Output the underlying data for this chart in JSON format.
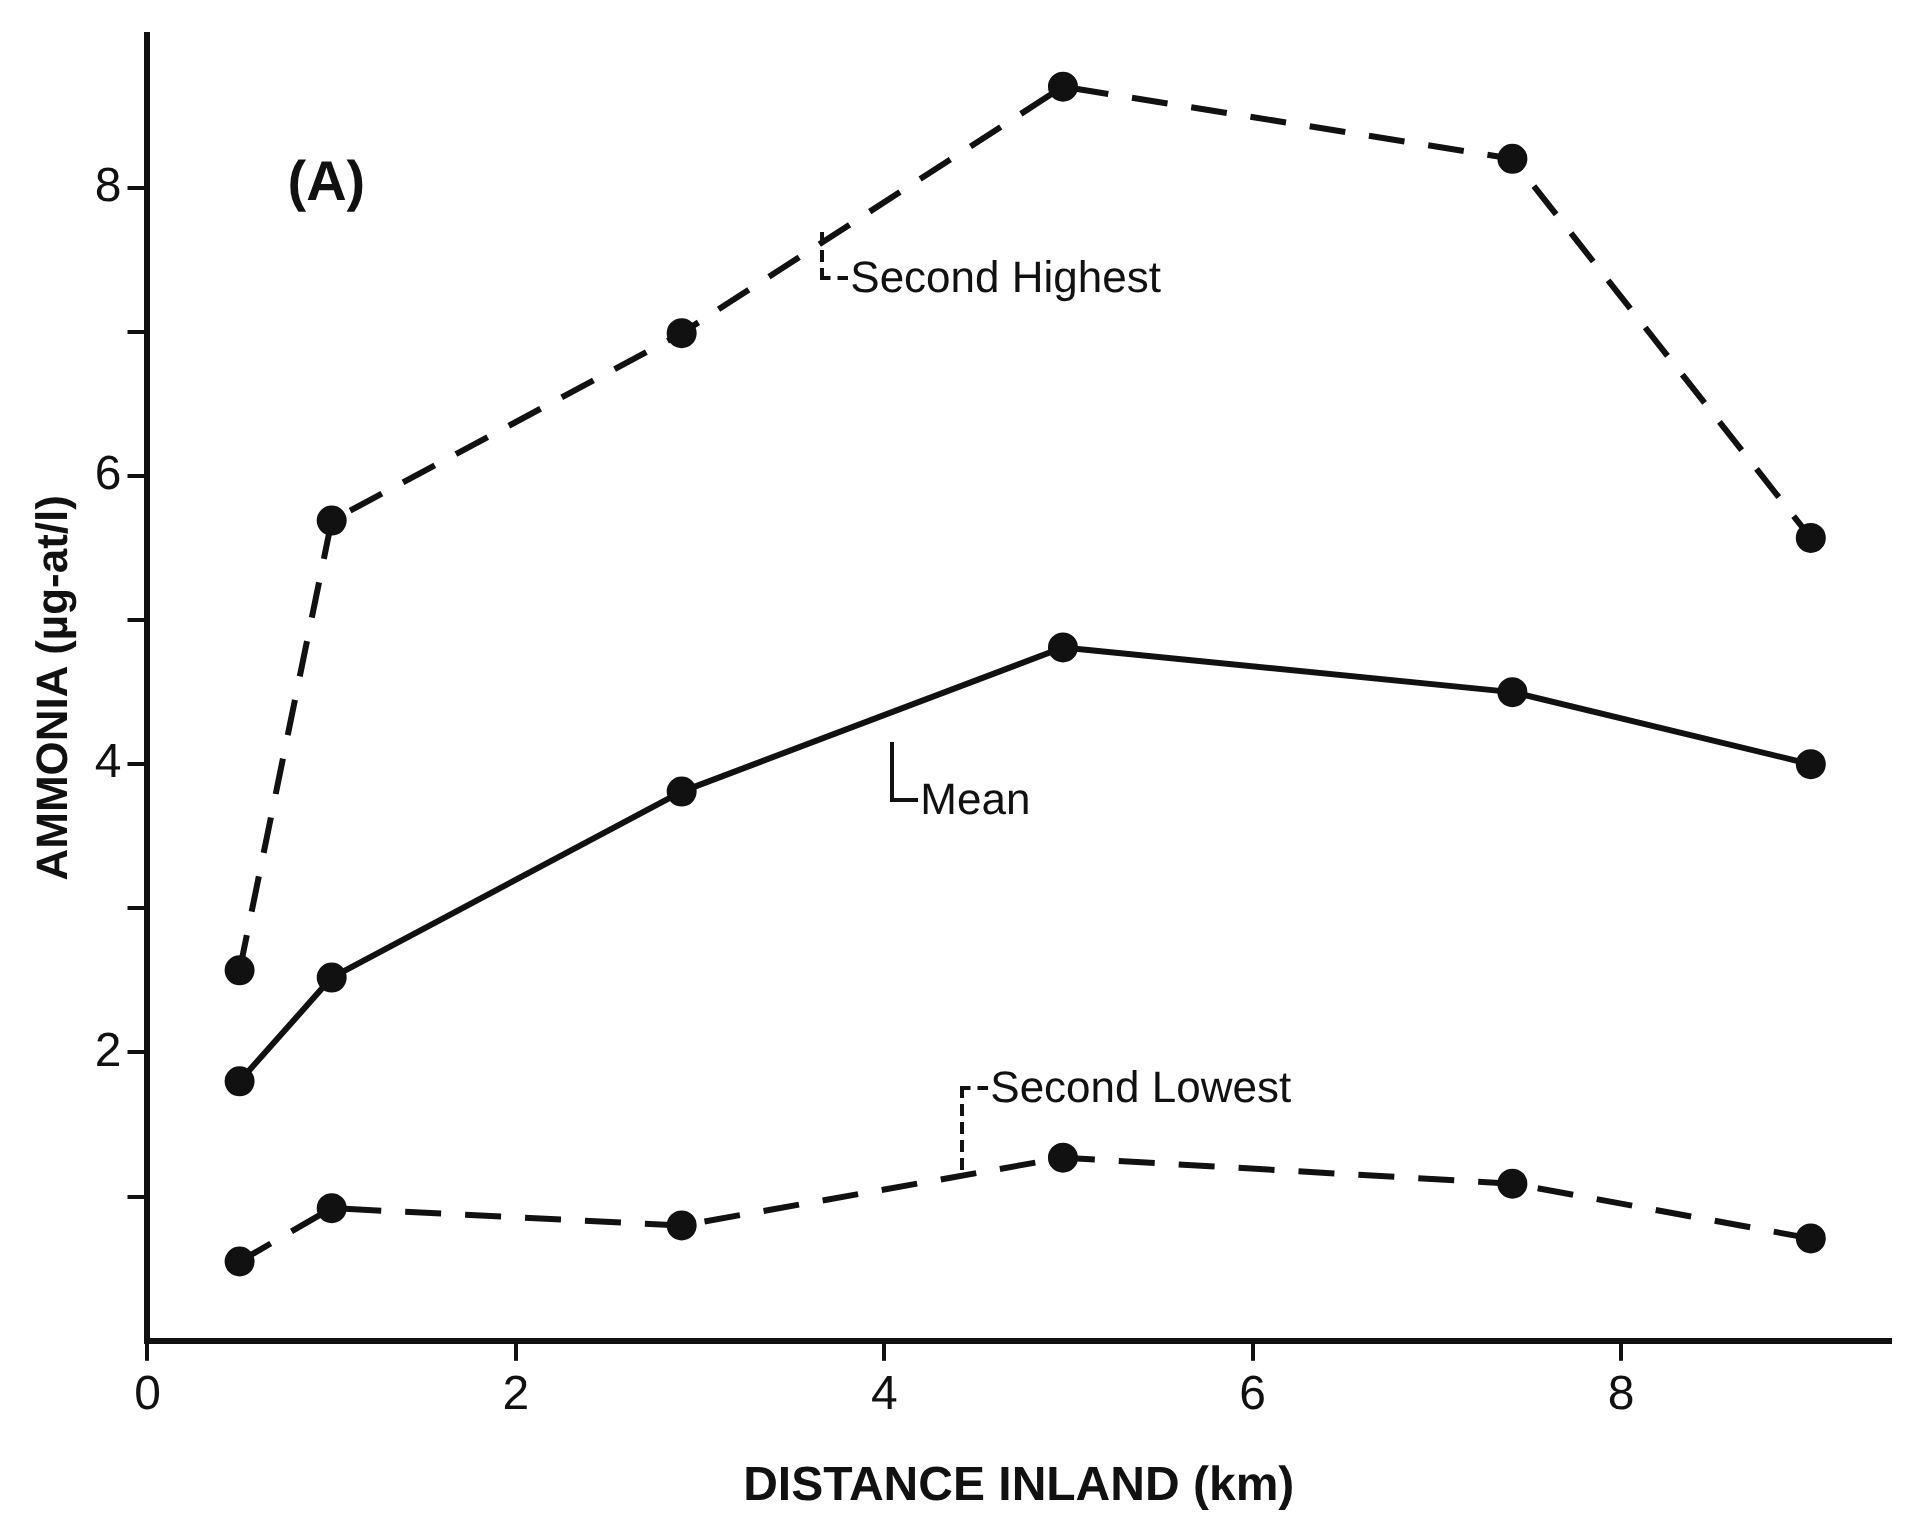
{
  "chart_data": {
    "type": "line",
    "xlabel": "DISTANCE INLAND (km)",
    "ylabel": "AMMONIA (µg-at/l)",
    "annotations": [
      "(A)"
    ],
    "x": [
      0.5,
      1.0,
      2.9,
      4.97,
      7.41,
      9.03
    ],
    "series": [
      {
        "name": "Second Highest",
        "color": "#111111",
        "line_style": "dashed",
        "values": [
          2.57,
          5.69,
          6.99,
          8.7,
          8.2,
          5.57
        ]
      },
      {
        "name": "Mean",
        "color": "#111111",
        "line_style": "solid",
        "values": [
          1.8,
          2.52,
          3.81,
          4.81,
          4.5,
          4.0
        ]
      },
      {
        "name": "Second Lowest",
        "color": "#111111",
        "line_style": "dashed",
        "values": [
          0.55,
          0.92,
          0.8,
          1.27,
          1.09,
          0.71
        ]
      }
    ],
    "xlim": [
      0,
      9.46
    ],
    "xticks": [
      0,
      2,
      4,
      6,
      8
    ],
    "ylim": [
      0,
      9.06
    ],
    "yticks": [
      {
        "value": 1,
        "label": null
      },
      2,
      {
        "value": 3,
        "label": null
      },
      4,
      {
        "value": 5,
        "label": null
      },
      6,
      {
        "value": 7,
        "label": null
      },
      8
    ],
    "marker": "circle",
    "grid": false,
    "legend": "center"
  }
}
